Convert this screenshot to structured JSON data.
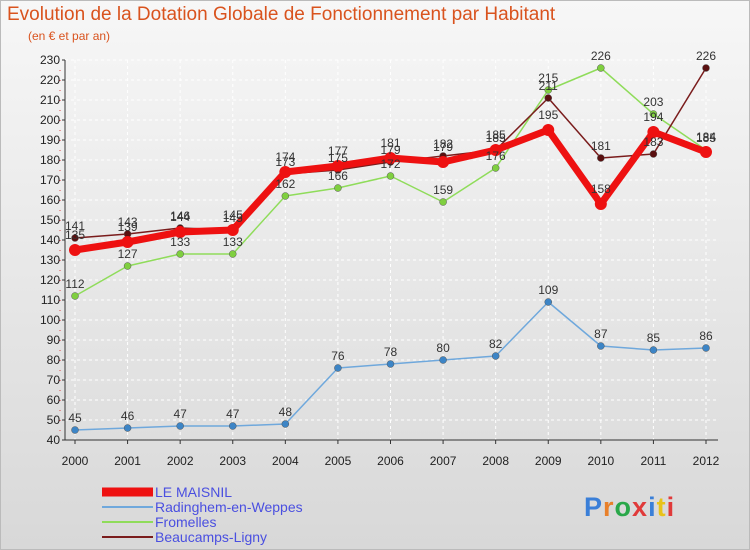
{
  "header": {
    "title": "Evolution de la Dotation Globale de Fonctionnement par Habitant",
    "subtitle": "(en € et par an)"
  },
  "brand": {
    "text": "Proxiti",
    "colors": [
      "#3a7fd8",
      "#e8802a",
      "#2aa84a",
      "#e03a3a",
      "#3a7fd8",
      "#e8c21a",
      "#e03a3a"
    ]
  },
  "chart_data": {
    "type": "line",
    "title": "Evolution de la Dotation Globale de Fonctionnement par Habitant",
    "subtitle": "(en € et par an)",
    "xlabel": "",
    "ylabel": "",
    "ylim": [
      40,
      230
    ],
    "ytick_step": 10,
    "grid": true,
    "x": [
      "2000",
      "2001",
      "2002",
      "2003",
      "2004",
      "2005",
      "2006",
      "2007",
      "2008",
      "2009",
      "2010",
      "2011",
      "2012"
    ],
    "series": [
      {
        "name": "Fromelles",
        "color": "#8fdc5a",
        "marker": "#7fcf3f",
        "values": [
          112,
          127,
          133,
          133,
          162,
          166,
          172,
          159,
          176,
          215,
          226,
          203,
          185
        ]
      },
      {
        "name": "Beaucamps-Ligny",
        "color": "#7a1c1c",
        "marker": "#5a1010",
        "values": [
          141,
          143,
          146,
          145,
          173,
          175,
          179,
          182,
          185,
          211,
          181,
          183,
          226
        ]
      },
      {
        "name": "Radinghem-en-Weppes",
        "color": "#6fa8dc",
        "marker": "#3d85c6",
        "values": [
          45,
          46,
          47,
          47,
          48,
          76,
          78,
          80,
          82,
          109,
          87,
          85,
          86
        ]
      },
      {
        "name": "LE MAISNIL",
        "color": "#ee1111",
        "marker": "#ee1111",
        "values": [
          135,
          139,
          144,
          145,
          174,
          177,
          181,
          179,
          185,
          195,
          158,
          194,
          184
        ]
      }
    ],
    "legend": {
      "position": "bottom-left",
      "entries": [
        "LE MAISNIL",
        "Radinghem-en-Weppes",
        "Fromelles",
        "Beaucamps-Ligny"
      ]
    }
  }
}
